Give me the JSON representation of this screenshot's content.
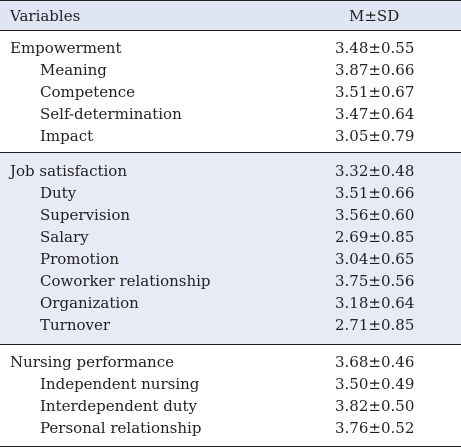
{
  "header": {
    "variables": "Variables",
    "msd": "M±SD"
  },
  "sections": [
    {
      "title": "Empowerment",
      "value": "3.48±0.55",
      "items": [
        {
          "label": "Meaning",
          "value": "3.87±0.66"
        },
        {
          "label": "Competence",
          "value": "3.51±0.67"
        },
        {
          "label": "Self-determination",
          "value": "3.47±0.64"
        },
        {
          "label": "Impact",
          "value": "3.05±0.79"
        }
      ]
    },
    {
      "title": "Job satisfaction",
      "value": "3.32±0.48",
      "items": [
        {
          "label": "Duty",
          "value": "3.51±0.66"
        },
        {
          "label": "Supervision",
          "value": "3.56±0.60"
        },
        {
          "label": "Salary",
          "value": "2.69±0.85"
        },
        {
          "label": "Promotion",
          "value": "3.04±0.65"
        },
        {
          "label": "Coworker relationship",
          "value": "3.75±0.56"
        },
        {
          "label": "Organization",
          "value": "3.18±0.64"
        },
        {
          "label": "Turnover",
          "value": "2.71±0.85"
        }
      ]
    },
    {
      "title": "Nursing performance",
      "value": "3.68±0.46",
      "items": [
        {
          "label": "Independent nursing",
          "value": "3.50±0.49"
        },
        {
          "label": "Interdependent duty",
          "value": "3.82±0.50"
        },
        {
          "label": "Personal relationship",
          "value": "3.76±0.52"
        }
      ]
    }
  ]
}
